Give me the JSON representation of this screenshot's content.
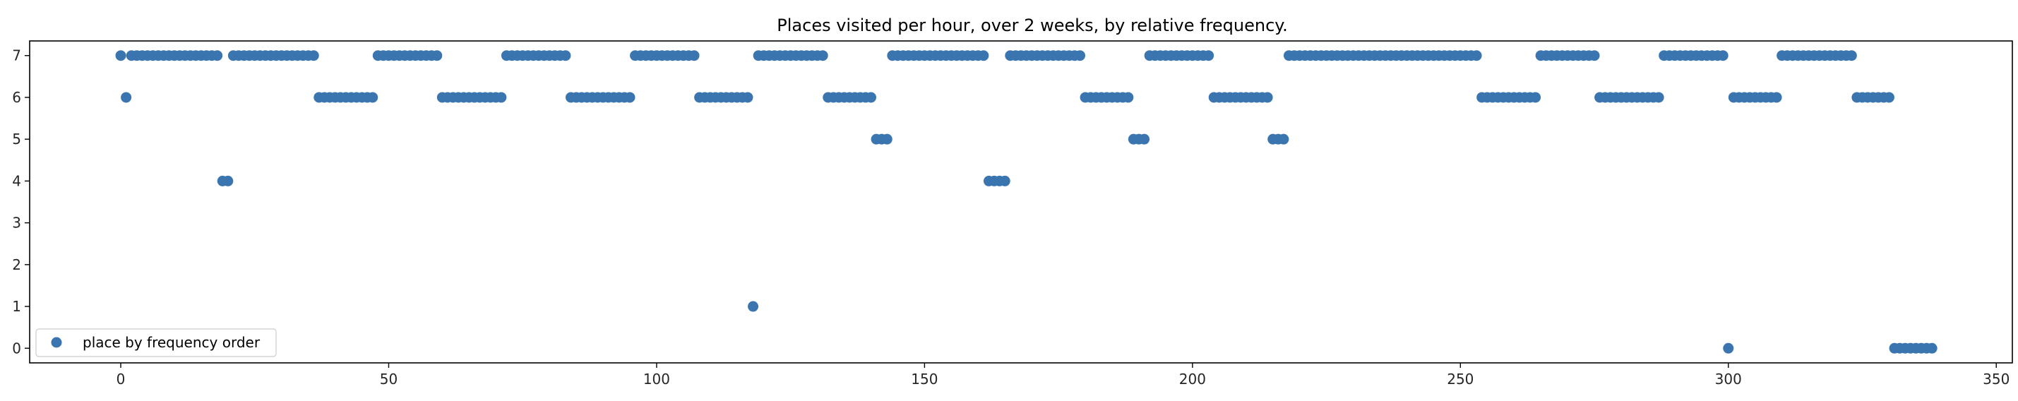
{
  "chart_data": {
    "type": "scatter",
    "title": "Places visited per hour, over 2 weeks, by relative frequency.",
    "xlabel": "",
    "ylabel": "",
    "xlim": [
      -17,
      353
    ],
    "ylim": [
      -0.35,
      7.35
    ],
    "xticks": [
      0,
      50,
      100,
      150,
      200,
      250,
      300,
      350
    ],
    "yticks": [
      0,
      1,
      2,
      3,
      4,
      5,
      6,
      7
    ],
    "grid": false,
    "legend": {
      "placement": "lower-left",
      "entries": [
        "place by frequency order"
      ]
    },
    "colors": {
      "marker": "#3b75af",
      "axes": "#000000",
      "text": "#262626"
    },
    "series": [
      {
        "name": "place by frequency order",
        "segments": [
          {
            "x_start": 0,
            "x_end": 0,
            "y": 7
          },
          {
            "x_start": 1,
            "x_end": 1,
            "y": 6
          },
          {
            "x_start": 2,
            "x_end": 18,
            "y": 7
          },
          {
            "x_start": 19,
            "x_end": 20,
            "y": 4
          },
          {
            "x_start": 21,
            "x_end": 36,
            "y": 7
          },
          {
            "x_start": 37,
            "x_end": 47,
            "y": 6
          },
          {
            "x_start": 48,
            "x_end": 59,
            "y": 7
          },
          {
            "x_start": 60,
            "x_end": 71,
            "y": 6
          },
          {
            "x_start": 72,
            "x_end": 83,
            "y": 7
          },
          {
            "x_start": 84,
            "x_end": 95,
            "y": 6
          },
          {
            "x_start": 96,
            "x_end": 107,
            "y": 7
          },
          {
            "x_start": 108,
            "x_end": 117,
            "y": 6
          },
          {
            "x_start": 118,
            "x_end": 118,
            "y": 1
          },
          {
            "x_start": 119,
            "x_end": 131,
            "y": 7
          },
          {
            "x_start": 132,
            "x_end": 140,
            "y": 6
          },
          {
            "x_start": 141,
            "x_end": 143,
            "y": 5
          },
          {
            "x_start": 144,
            "x_end": 161,
            "y": 7
          },
          {
            "x_start": 162,
            "x_end": 165,
            "y": 4
          },
          {
            "x_start": 166,
            "x_end": 179,
            "y": 7
          },
          {
            "x_start": 180,
            "x_end": 188,
            "y": 6
          },
          {
            "x_start": 189,
            "x_end": 191,
            "y": 5
          },
          {
            "x_start": 192,
            "x_end": 203,
            "y": 7
          },
          {
            "x_start": 204,
            "x_end": 214,
            "y": 6
          },
          {
            "x_start": 215,
            "x_end": 217,
            "y": 5
          },
          {
            "x_start": 218,
            "x_end": 253,
            "y": 7
          },
          {
            "x_start": 254,
            "x_end": 264,
            "y": 6
          },
          {
            "x_start": 265,
            "x_end": 275,
            "y": 7
          },
          {
            "x_start": 276,
            "x_end": 287,
            "y": 6
          },
          {
            "x_start": 288,
            "x_end": 299,
            "y": 7
          },
          {
            "x_start": 300,
            "x_end": 300,
            "y": 0
          },
          {
            "x_start": 301,
            "x_end": 309,
            "y": 6
          },
          {
            "x_start": 310,
            "x_end": 323,
            "y": 7
          },
          {
            "x_start": 324,
            "x_end": 330,
            "y": 6
          },
          {
            "x_start": 331,
            "x_end": 338,
            "y": 0
          }
        ]
      }
    ]
  }
}
